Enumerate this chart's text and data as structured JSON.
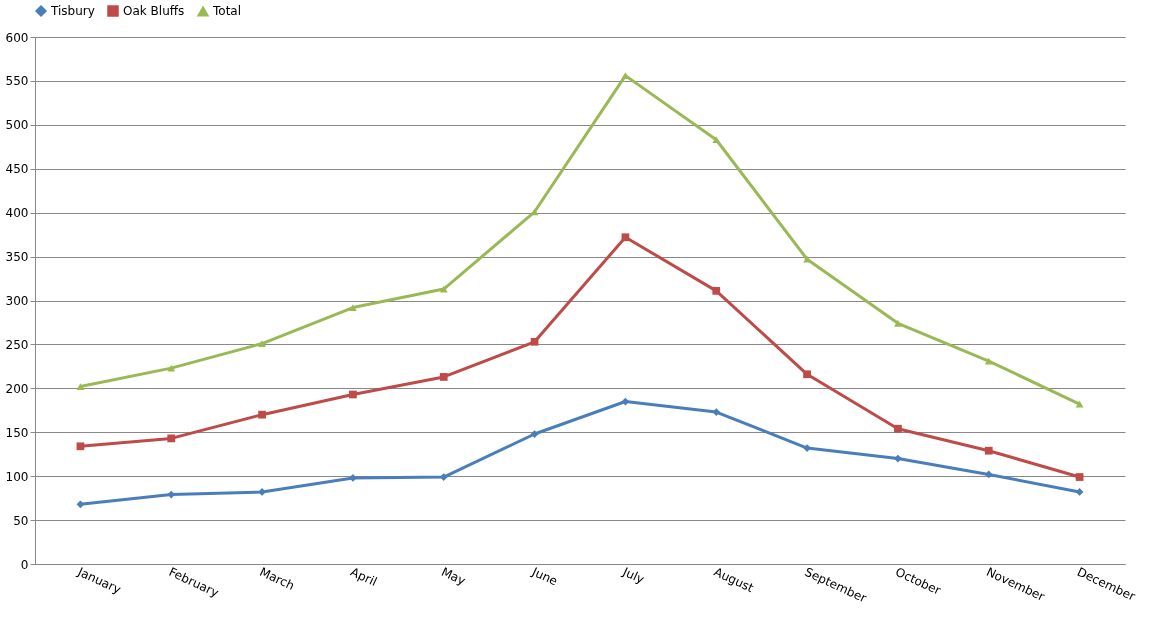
{
  "chart_data": {
    "type": "line",
    "categories": [
      "January",
      "February",
      "March",
      "April",
      "May",
      "June",
      "July",
      "August",
      "September",
      "October",
      "November",
      "December"
    ],
    "series": [
      {
        "name": "Tisbury",
        "color": "#4a7ebb",
        "marker": "diamond",
        "values": [
          68,
          79,
          82,
          98,
          99,
          148,
          185,
          173,
          132,
          120,
          102,
          82
        ]
      },
      {
        "name": "Oak Bluffs",
        "color": "#be4b48",
        "marker": "square",
        "values": [
          134,
          143,
          170,
          193,
          213,
          253,
          372,
          311,
          216,
          154,
          129,
          99
        ]
      },
      {
        "name": "Total",
        "color": "#98b954",
        "marker": "triangle",
        "values": [
          202,
          223,
          251,
          292,
          313,
          401,
          556,
          483,
          347,
          274,
          231,
          182
        ]
      }
    ],
    "ylim": [
      0,
      600
    ],
    "yticks": [
      0,
      50,
      100,
      150,
      200,
      250,
      300,
      350,
      400,
      450,
      500,
      550,
      600
    ],
    "grid": "y",
    "legend": "top",
    "line_style": "solid"
  }
}
